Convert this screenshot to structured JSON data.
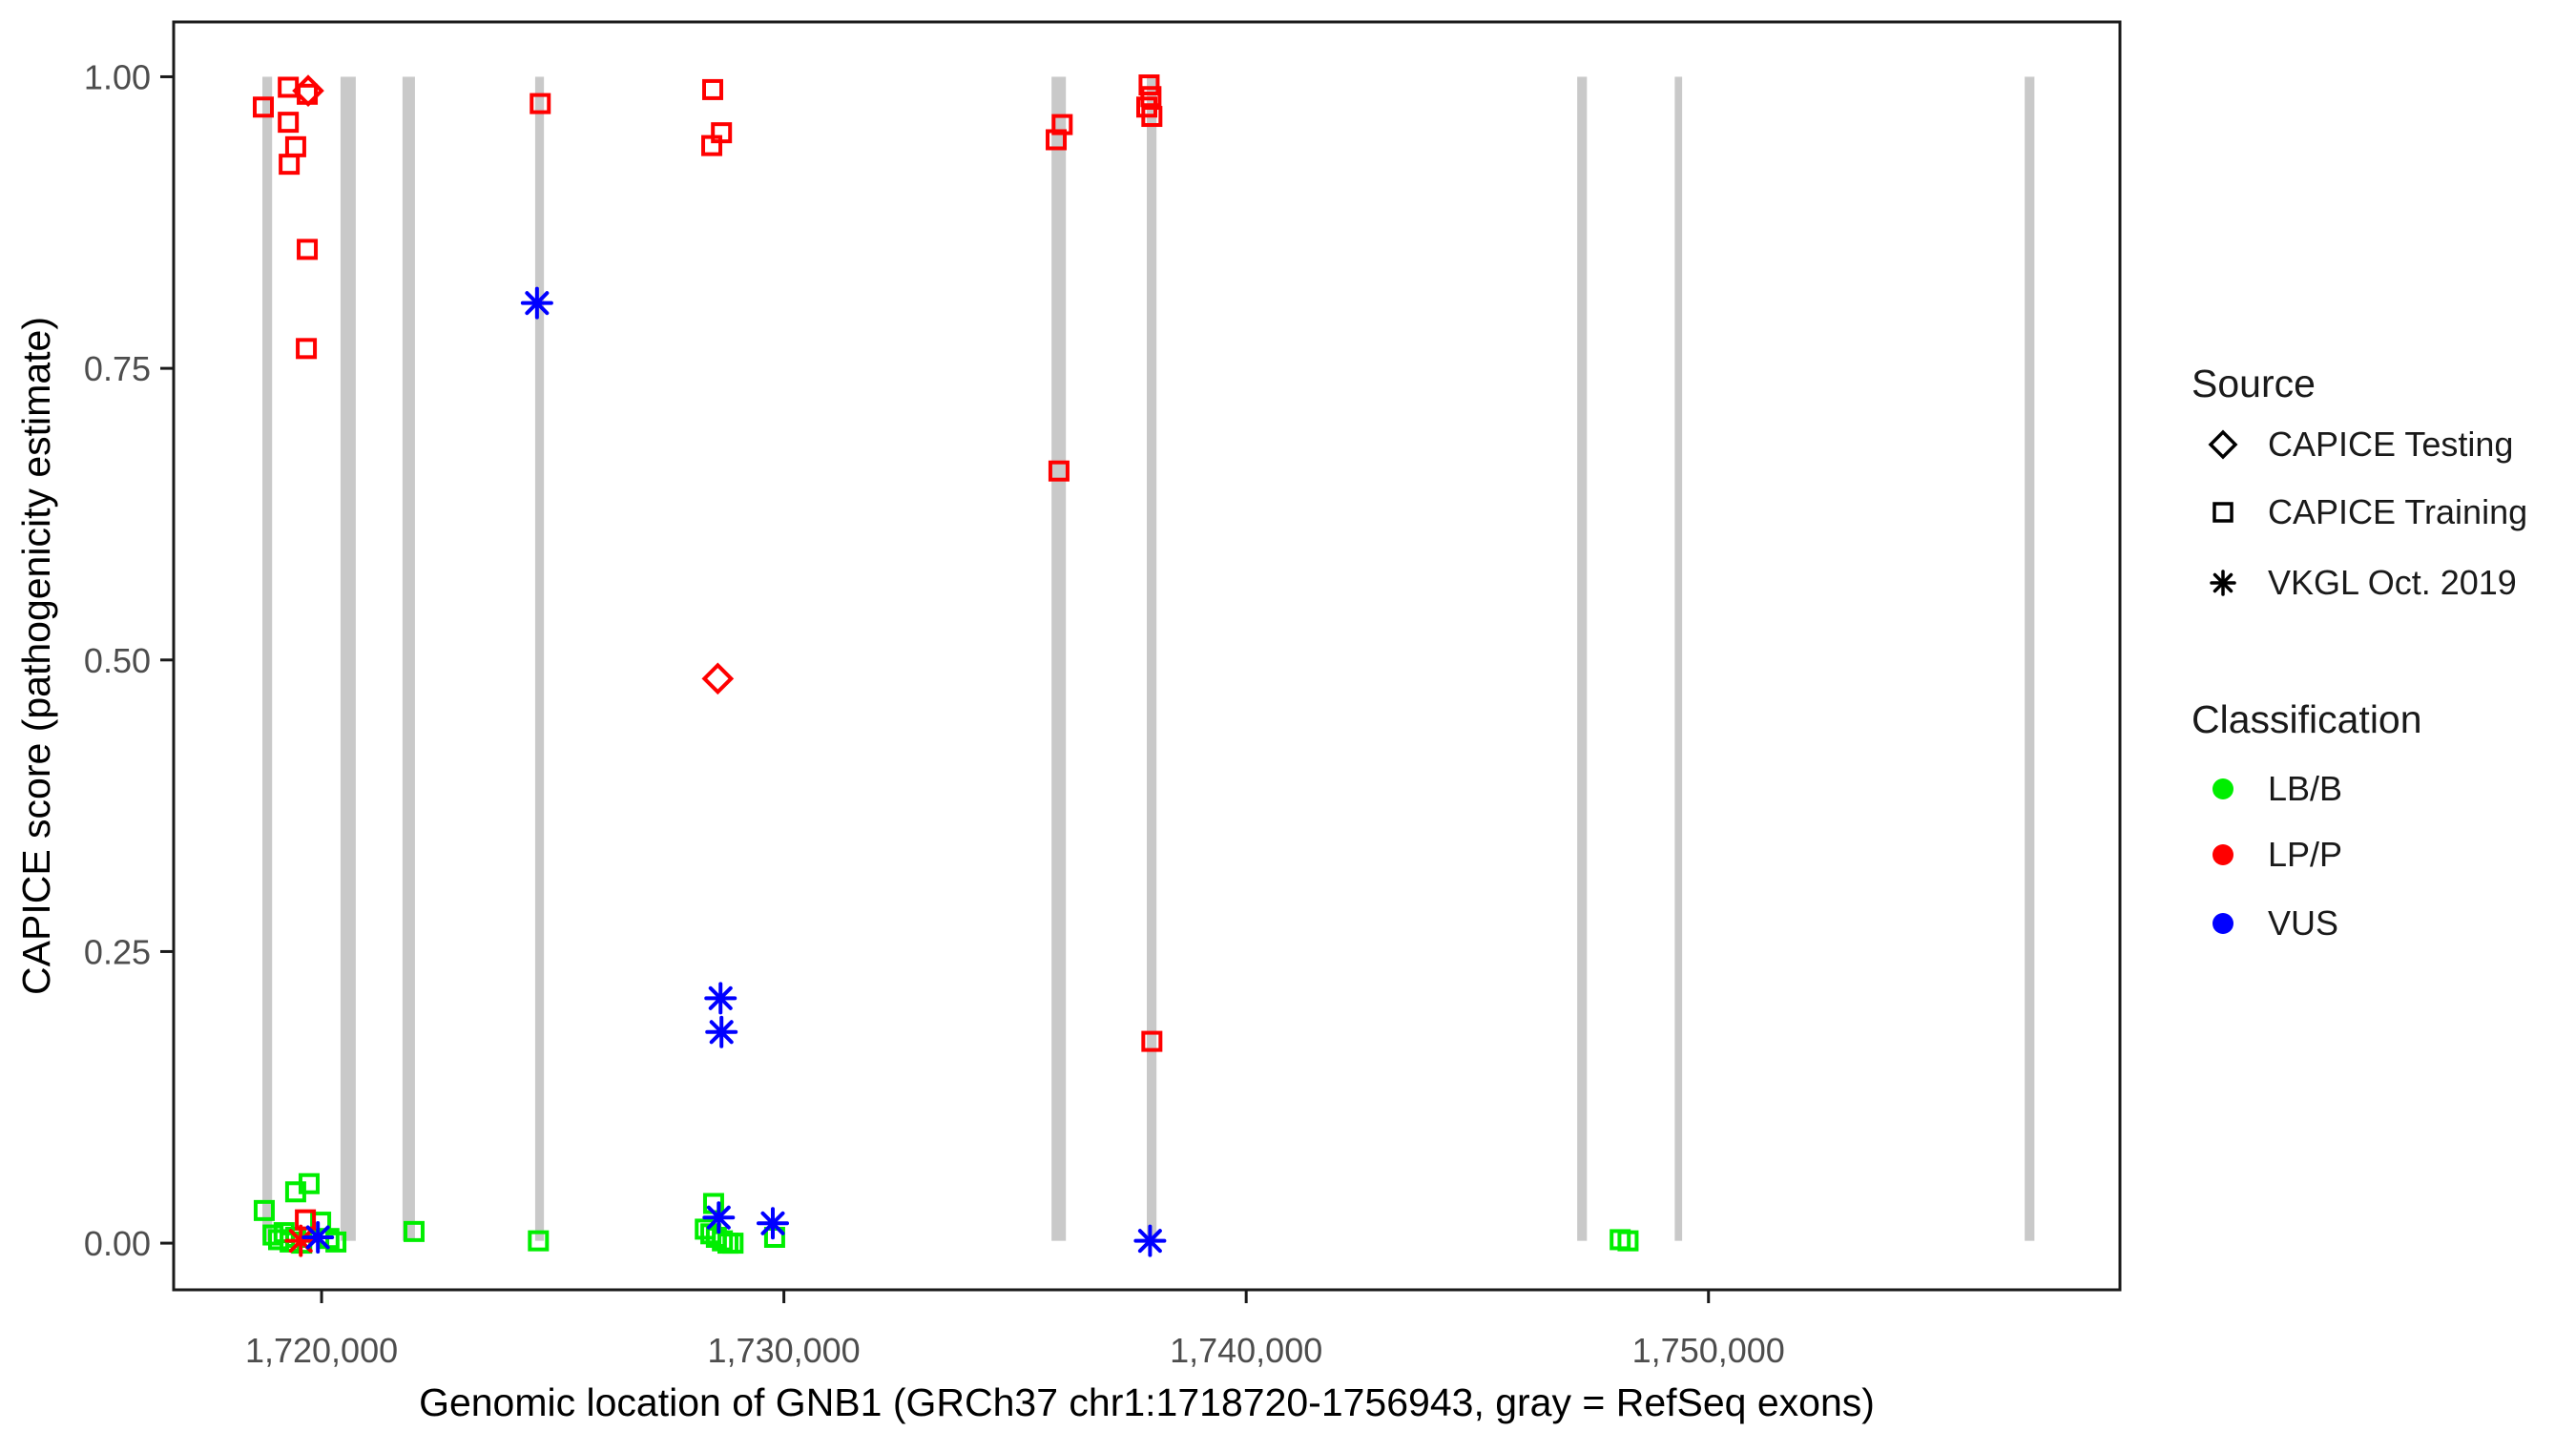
{
  "axes": {
    "x": {
      "label": "Genomic location of GNB1 (GRCh37 chr1:1718720-1756943, gray = RefSeq exons)",
      "range": [
        1716800,
        1758900
      ],
      "ticks": [
        1720000,
        1730000,
        1740000,
        1750000
      ],
      "tick_labels": [
        "1,720,000",
        "1,730,000",
        "1,740,000",
        "1,750,000"
      ]
    },
    "y": {
      "label": "CAPICE score (pathogenicity estimate)",
      "range": [
        -0.04,
        1.047
      ],
      "ticks": [
        0.0,
        0.25,
        0.5,
        0.75,
        1.0
      ],
      "tick_labels": [
        "0.00",
        "0.25",
        "0.50",
        "0.75",
        "1.00"
      ]
    }
  },
  "legend": {
    "source": {
      "title": "Source",
      "items": [
        {
          "label": "CAPICE Testing",
          "marker": "diamond"
        },
        {
          "label": "CAPICE Training",
          "marker": "square"
        },
        {
          "label": "VKGL Oct. 2019",
          "marker": "asterisk"
        }
      ]
    },
    "classification": {
      "title": "Classification",
      "items": [
        {
          "label": "LB/B",
          "color": "#00ee00"
        },
        {
          "label": "LP/P",
          "color": "#ff0000"
        },
        {
          "label": "VUS",
          "color": "#0000ff"
        }
      ]
    }
  },
  "colors": {
    "lb_b": "#00ee00",
    "lp_p": "#ff0000",
    "vus": "#0000ff",
    "exon_gray": "#c9c9c9",
    "panel_border": "#1a1a1a",
    "tick_text": "#4d4d4d",
    "axis_title": "#000000"
  },
  "chart_data": {
    "type": "scatter",
    "title": "",
    "xlabel": "Genomic location of GNB1 (GRCh37 chr1:1718720-1756943, gray = RefSeq exons)",
    "ylabel": "CAPICE score (pathogenicity estimate)",
    "xlim": [
      1716800,
      1758900
    ],
    "ylim": [
      -0.04,
      1.047
    ],
    "grid": false,
    "legend_position": "right",
    "exons_refseq": [
      [
        1718720,
        1718930
      ],
      [
        1720410,
        1720740
      ],
      [
        1721750,
        1722020
      ],
      [
        1724620,
        1724810
      ],
      [
        1735790,
        1736100
      ],
      [
        1737850,
        1738060
      ],
      [
        1747160,
        1747370
      ],
      [
        1749270,
        1749430
      ],
      [
        1756840,
        1757050
      ]
    ],
    "series": [
      {
        "name": "CAPICE Training LB/B",
        "source": "CAPICE Training",
        "classification": "LB/B",
        "marker": "square",
        "color": "#00ee00",
        "points": [
          [
            1718760,
            0.028
          ],
          [
            1719440,
            0.044
          ],
          [
            1719730,
            0.051
          ],
          [
            1719980,
            0.018
          ],
          [
            1718950,
            0.007
          ],
          [
            1719070,
            0.003
          ],
          [
            1719190,
            0.009
          ],
          [
            1719320,
            0.001
          ],
          [
            1719440,
            0.005
          ],
          [
            1719570,
            0.0
          ],
          [
            1720160,
            0.004
          ],
          [
            1720310,
            0.001
          ],
          [
            1722000,
            0.01
          ],
          [
            1724690,
            0.002
          ],
          [
            1728480,
            0.034
          ],
          [
            1728300,
            0.012
          ],
          [
            1728420,
            0.008
          ],
          [
            1728540,
            0.005
          ],
          [
            1728670,
            0.002
          ],
          [
            1728790,
            0.0
          ],
          [
            1728900,
            0.0
          ],
          [
            1729800,
            0.005
          ],
          [
            1748090,
            0.003
          ],
          [
            1748260,
            0.002
          ]
        ]
      },
      {
        "name": "CAPICE Training LP/P",
        "source": "CAPICE Training",
        "classification": "LP/P",
        "marker": "square",
        "color": "#ff0000",
        "points": [
          [
            1719280,
            0.991
          ],
          [
            1718740,
            0.974
          ],
          [
            1719690,
            0.985
          ],
          [
            1719280,
            0.961
          ],
          [
            1719440,
            0.94
          ],
          [
            1719300,
            0.925
          ],
          [
            1719690,
            0.852
          ],
          [
            1719670,
            0.767
          ],
          [
            1724730,
            0.977
          ],
          [
            1728460,
            0.989
          ],
          [
            1728650,
            0.952
          ],
          [
            1728440,
            0.941
          ],
          [
            1736020,
            0.959
          ],
          [
            1735890,
            0.946
          ],
          [
            1735950,
            0.662
          ],
          [
            1737900,
            0.993
          ],
          [
            1737940,
            0.983
          ],
          [
            1737850,
            0.974
          ],
          [
            1737960,
            0.966
          ],
          [
            1737960,
            0.173
          ],
          [
            1719650,
            0.02
          ]
        ]
      },
      {
        "name": "CAPICE Testing LP/P",
        "source": "CAPICE Testing",
        "classification": "LP/P",
        "marker": "diamond",
        "color": "#ff0000",
        "points": [
          [
            1719710,
            0.988
          ],
          [
            1728570,
            0.484
          ]
        ]
      },
      {
        "name": "VKGL Oct. 2019 LP/P",
        "source": "VKGL Oct. 2019",
        "classification": "LP/P",
        "marker": "asterisk",
        "color": "#ff0000",
        "points": [
          [
            1719550,
            0.002
          ]
        ]
      },
      {
        "name": "VKGL Oct. 2019 VUS",
        "source": "VKGL Oct. 2019",
        "classification": "VUS",
        "marker": "asterisk",
        "color": "#0000ff",
        "points": [
          [
            1719920,
            0.005
          ],
          [
            1724660,
            0.806
          ],
          [
            1728630,
            0.21
          ],
          [
            1728650,
            0.181
          ],
          [
            1728590,
            0.022
          ],
          [
            1729760,
            0.017
          ],
          [
            1737920,
            0.002
          ]
        ]
      }
    ]
  }
}
